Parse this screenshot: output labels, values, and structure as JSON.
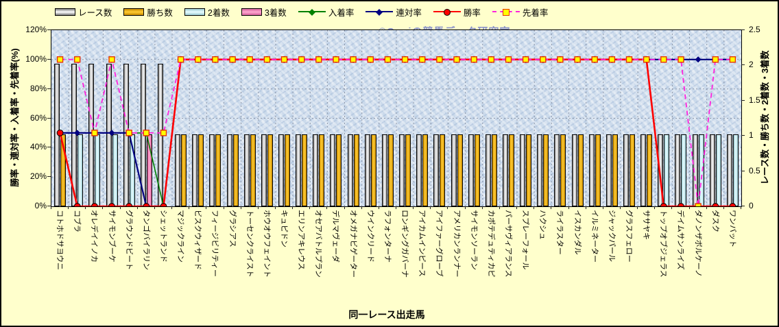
{
  "watermark": "©Caniの競馬データ研究室",
  "axes": {
    "left_title": "勝率・連対率・入着率・先着率(%)",
    "right_title": "レース数・勝ち数・2着数・3着数",
    "x_title": "同一レース出走馬",
    "left_ticks": [
      "120%",
      "100%",
      "80%",
      "60%",
      "40%",
      "20%",
      "0%"
    ],
    "right_ticks": [
      "2.5",
      "2",
      "1.5",
      "1",
      "0.5",
      "0"
    ]
  },
  "legend": [
    {
      "label": "レース数",
      "type": "bar",
      "center": "#FFFFFF",
      "edge": "#7F7F7F"
    },
    {
      "label": "勝ち数",
      "type": "bar",
      "center": "#FFCC33",
      "edge": "#C88A00"
    },
    {
      "label": "2着数",
      "type": "bar",
      "center": "#E9FDFF",
      "edge": "#9CCCD4"
    },
    {
      "label": "3着数",
      "type": "bar",
      "center": "#FFA8D0",
      "edge": "#D8609C"
    },
    {
      "label": "入着率",
      "type": "line",
      "color": "#008000",
      "marker": "diamond"
    },
    {
      "label": "連対率",
      "type": "line",
      "color": "#000080",
      "marker": "diamond"
    },
    {
      "label": "勝率",
      "type": "line",
      "color": "#FF0000",
      "marker": "circle"
    },
    {
      "label": "先着率",
      "type": "line-dashed",
      "color": "#FF22DD",
      "marker": "square"
    }
  ],
  "chart_data": {
    "type": "bar+line combo",
    "title": "",
    "xlabel": "同一レース出走馬",
    "left_axis": {
      "label": "勝率・連対率・入着率・先着率(%)",
      "range": [
        0,
        120
      ],
      "unit": "%"
    },
    "right_axis": {
      "label": "レース数・勝ち数・2着数・3着数",
      "range": [
        0,
        2.5
      ]
    },
    "grid": "on",
    "legend_position": "top",
    "categories": [
      "コトホドサヨウニ",
      "コブラ",
      "オレデイイノカ",
      "サイモンブーケ",
      "グラウンドビート",
      "タンゴバイラリン",
      "シェットランド",
      "マジックライン",
      "ビスクウィザード",
      "フィージビリティー",
      "グラシアス",
      "トーセンクライスト",
      "ホウオウフェイント",
      "キュピドン",
      "エリンアキレウス",
      "オセアバトルプラン",
      "デルマヴェーダ",
      "オメガナビゲーター",
      "ウインクリード",
      "ラフォンターナ",
      "ロンギングガバーナ",
      "アイカムインピース",
      "アイファーグローブ",
      "アメリカンランナー",
      "サイモンソーラン",
      "カポテデュティカピ",
      "パーサヴィアランス",
      "スプレーフォール",
      "ハクシュ",
      "ライラスター",
      "イスカンダル",
      "イルミネーター",
      "ジャックパール",
      "グラスフェロー",
      "ササヤキ",
      "トップオブジェラス",
      "デイムサンライズ",
      "ダノンザボルケーノ",
      "ダスク",
      "ワンバット"
    ],
    "bar_series": [
      {
        "name": "レース数",
        "axis": "right",
        "center": "#FFFFFF",
        "edge": "#7F7F7F",
        "values": [
          2,
          2,
          2,
          2,
          2,
          2,
          2,
          1,
          1,
          1,
          1,
          1,
          1,
          1,
          1,
          1,
          1,
          1,
          1,
          1,
          1,
          1,
          1,
          1,
          1,
          1,
          1,
          1,
          1,
          1,
          1,
          1,
          1,
          1,
          1,
          1,
          1,
          1,
          1,
          1
        ]
      },
      {
        "name": "勝ち数",
        "axis": "right",
        "center": "#FFCC33",
        "edge": "#C88A00",
        "values": [
          1,
          0,
          0,
          0,
          0,
          0,
          0,
          1,
          1,
          1,
          1,
          1,
          1,
          1,
          1,
          1,
          1,
          1,
          1,
          1,
          1,
          1,
          1,
          1,
          1,
          1,
          1,
          1,
          1,
          1,
          1,
          1,
          1,
          1,
          1,
          0,
          0,
          0,
          0,
          0
        ]
      },
      {
        "name": "2着数",
        "axis": "right",
        "center": "#E9FDFF",
        "edge": "#9CCCD4",
        "values": [
          0,
          1,
          1,
          1,
          1,
          0,
          0,
          0,
          0,
          0,
          0,
          0,
          0,
          0,
          0,
          0,
          0,
          0,
          0,
          0,
          0,
          0,
          0,
          0,
          0,
          0,
          0,
          0,
          0,
          0,
          0,
          0,
          0,
          0,
          0,
          1,
          1,
          1,
          1,
          1
        ]
      },
      {
        "name": "3着数",
        "axis": "right",
        "center": "#FFA8D0",
        "edge": "#D8609C",
        "values": [
          0,
          0,
          0,
          0,
          0,
          1,
          0,
          0,
          0,
          0,
          0,
          0,
          0,
          0,
          0,
          0,
          0,
          0,
          0,
          0,
          0,
          0,
          0,
          0,
          0,
          0,
          0,
          0,
          0,
          0,
          0,
          0,
          0,
          0,
          0,
          0,
          0,
          0,
          0,
          0
        ]
      }
    ],
    "line_series": [
      {
        "name": "入着率",
        "key": "nyuchaku",
        "axis": "left",
        "color": "#008000",
        "marker": "diamond",
        "msize": 3.5,
        "width": 1.6,
        "dash": null,
        "values": [
          50,
          50,
          50,
          50,
          50,
          50,
          0,
          100,
          100,
          100,
          100,
          100,
          100,
          100,
          100,
          100,
          100,
          100,
          100,
          100,
          100,
          100,
          100,
          100,
          100,
          100,
          100,
          100,
          100,
          100,
          100,
          100,
          100,
          100,
          100,
          100,
          100,
          100,
          100,
          100
        ]
      },
      {
        "name": "連対率",
        "key": "rentai",
        "axis": "left",
        "color": "#000080",
        "marker": "diamond",
        "msize": 4.5,
        "width": 2.2,
        "dash": null,
        "values": [
          50,
          50,
          50,
          50,
          50,
          0,
          0,
          100,
          100,
          100,
          100,
          100,
          100,
          100,
          100,
          100,
          100,
          100,
          100,
          100,
          100,
          100,
          100,
          100,
          100,
          100,
          100,
          100,
          100,
          100,
          100,
          100,
          100,
          100,
          100,
          100,
          100,
          100,
          100,
          100
        ]
      },
      {
        "name": "勝率",
        "key": "shoritsu",
        "axis": "left",
        "color": "#FF0000",
        "marker": "circle",
        "msize": 4.4,
        "width": 2.6,
        "dash": null,
        "values": [
          50,
          0,
          0,
          0,
          0,
          0,
          0,
          100,
          100,
          100,
          100,
          100,
          100,
          100,
          100,
          100,
          100,
          100,
          100,
          100,
          100,
          100,
          100,
          100,
          100,
          100,
          100,
          100,
          100,
          100,
          100,
          100,
          100,
          100,
          100,
          0,
          0,
          0,
          0,
          0
        ]
      },
      {
        "name": "先着率",
        "key": "senchaku",
        "axis": "left",
        "color": "#FF22DD",
        "marker": "square",
        "msize": 4,
        "width": 1.8,
        "dash": "7 5",
        "values": [
          100,
          100,
          50,
          100,
          50,
          50,
          50,
          100,
          100,
          100,
          100,
          100,
          100,
          100,
          100,
          100,
          100,
          100,
          100,
          100,
          100,
          100,
          100,
          100,
          100,
          100,
          100,
          100,
          100,
          100,
          100,
          100,
          100,
          100,
          100,
          100,
          100,
          0,
          100,
          100
        ]
      }
    ]
  }
}
